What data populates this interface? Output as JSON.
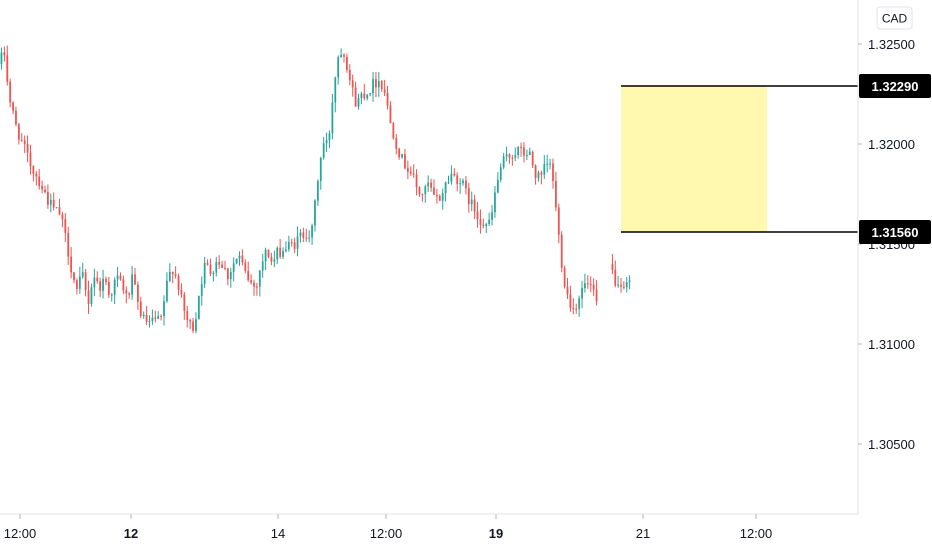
{
  "chart_data": {
    "type": "candlestick",
    "currency": "CAD",
    "title": "",
    "xlabel": "",
    "ylabel": "",
    "ylim": [
      1.3015,
      1.3272
    ],
    "colors": {
      "up": "#26a69a",
      "down": "#ef5350",
      "zone_fill": "#fff9b0",
      "tag_bg": "#000000"
    },
    "y_ticks": [
      {
        "value": 1.325,
        "label": "1.32500"
      },
      {
        "value": 1.32,
        "label": "1.32000"
      },
      {
        "value": 1.315,
        "label": "1.31500"
      },
      {
        "value": 1.31,
        "label": "1.31000"
      },
      {
        "value": 1.305,
        "label": "1.30500"
      }
    ],
    "x_ticks": [
      {
        "label": "12:00",
        "bold": false
      },
      {
        "label": "12",
        "bold": true
      },
      {
        "label": "14",
        "bold": false
      },
      {
        "label": "12:00",
        "bold": false
      },
      {
        "label": "19",
        "bold": true
      },
      {
        "label": "21",
        "bold": false
      },
      {
        "label": "12:00",
        "bold": false
      }
    ],
    "levels": [
      {
        "value": 1.3229,
        "label": "1.32290"
      },
      {
        "value": 1.3156,
        "label": "1.31560"
      }
    ],
    "zone": {
      "top": 1.3229,
      "bottom": 1.3156
    },
    "path": [
      [
        1.324,
        1.3246,
        1.3222,
        1.321,
        1.3202,
        1.3195,
        1.3188,
        1.3183,
        1.3177,
        1.3171,
        1.3167,
        1.3165,
        1.3153,
        1.3138,
        1.3126,
        1.3135,
        1.312,
        1.3135,
        1.3128,
        1.3133,
        1.3124,
        1.3133,
        1.3131,
        1.3122,
        1.3133,
        1.3119,
        1.3112,
        1.311,
        1.3112,
        1.3111,
        1.3128,
        1.3139,
        1.3132,
        1.3118,
        1.311,
        1.3108,
        1.3128,
        1.314,
        1.3136,
        1.3142,
        1.314,
        1.3134,
        1.314,
        1.3144,
        1.3136,
        1.3131,
        1.3128,
        1.314,
        1.3147,
        1.314,
        1.3146,
        1.3147,
        1.3149,
        1.315,
        1.3154,
        1.3156,
        1.3154,
        1.318,
        1.32,
        1.32,
        1.323,
        1.3248,
        1.3245,
        1.323,
        1.322,
        1.3225,
        1.3226,
        1.323,
        1.3232,
        1.3228,
        1.3212,
        1.3202,
        1.3193,
        1.3189,
        1.3185,
        1.3176,
        1.3175,
        1.318,
        1.3172,
        1.3173,
        1.318,
        1.3185,
        1.3183,
        1.318,
        1.3173,
        1.3168,
        1.3163,
        1.316,
        1.316,
        1.3178,
        1.319,
        1.3193,
        1.3195,
        1.3197,
        1.3195,
        1.3195,
        1.3185,
        1.3182,
        1.319,
        1.3188,
        1.316,
        1.3135,
        1.3122,
        1.3117,
        1.3125,
        1.313,
        1.3128,
        1.312
      ],
      [
        1.314,
        1.3125,
        1.313
      ]
    ]
  }
}
